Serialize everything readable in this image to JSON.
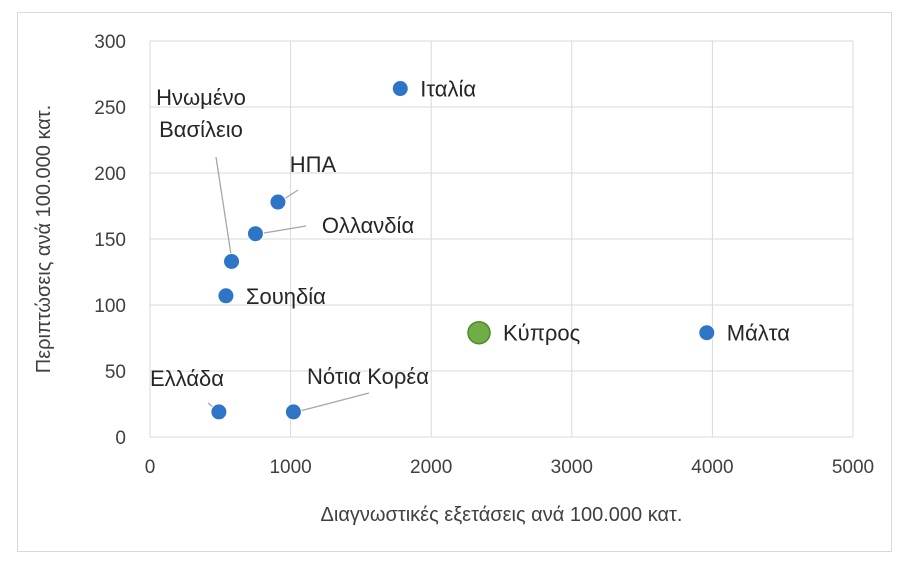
{
  "chart_data": {
    "type": "scatter",
    "title": "",
    "xlabel": "Διαγνωστικές εξετάσεις ανά 100.000 κατ.",
    "ylabel": "Περιπτώσεις ανά 100.000 κατ.",
    "xlim": [
      0,
      5000
    ],
    "ylim": [
      0,
      300
    ],
    "xticks": [
      0,
      1000,
      2000,
      3000,
      4000,
      5000
    ],
    "yticks": [
      0,
      50,
      100,
      150,
      200,
      250,
      300
    ],
    "grid": true,
    "legend": "none",
    "colors": {
      "default": "#2e75c7",
      "highlight": "#70ad47",
      "gridline": "#d9d9d9",
      "leader": "#a6a6a6"
    },
    "points": [
      {
        "label": "Ιταλία",
        "x": 1780,
        "y": 264,
        "highlight": false
      },
      {
        "label": "Ηνωμένο Βασίλειο",
        "label_lines": [
          "Ηνωμένο",
          "Βασίλειο"
        ],
        "x": 580,
        "y": 133,
        "highlight": false
      },
      {
        "label": "ΗΠΑ",
        "x": 910,
        "y": 178,
        "highlight": false
      },
      {
        "label": "Ολλανδία",
        "x": 750,
        "y": 154,
        "highlight": false
      },
      {
        "label": "Σουηδία",
        "x": 540,
        "y": 107,
        "highlight": false
      },
      {
        "label": "Κύπρος",
        "x": 2340,
        "y": 79,
        "highlight": true
      },
      {
        "label": "Μάλτα",
        "x": 3960,
        "y": 79,
        "highlight": false
      },
      {
        "label": "Ελλάδα",
        "x": 490,
        "y": 19,
        "highlight": false
      },
      {
        "label": "Νότια Κορέα",
        "x": 1020,
        "y": 19,
        "highlight": false
      }
    ]
  }
}
